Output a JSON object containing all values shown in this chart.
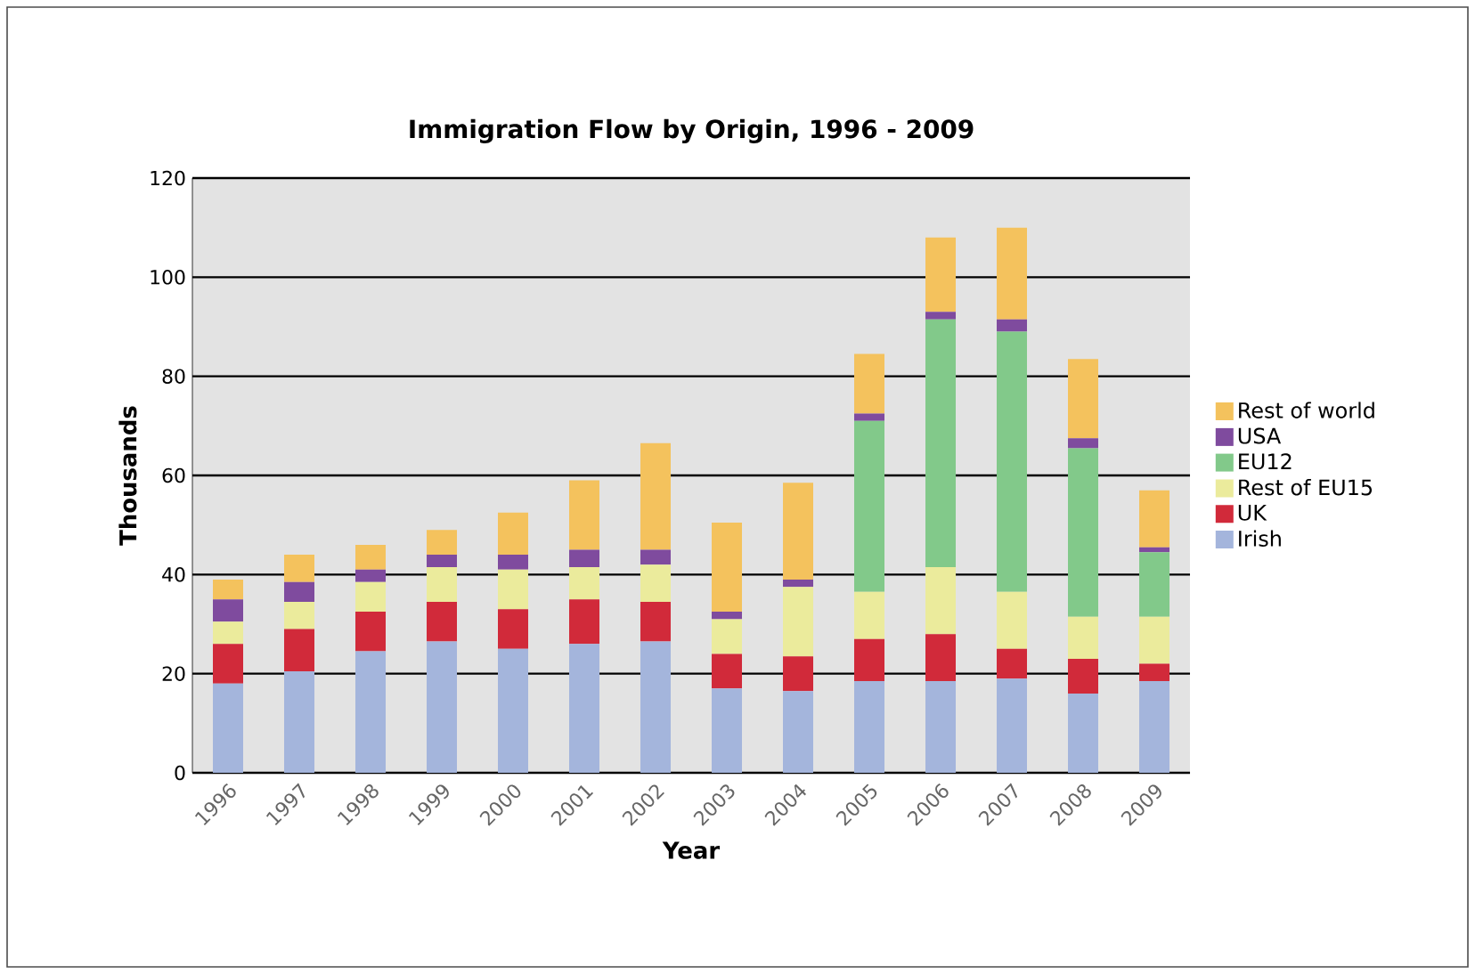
{
  "chart_data": {
    "type": "bar",
    "stacked": true,
    "title": "Immigration Flow by Origin, 1996 - 2009",
    "xlabel": "Year",
    "ylabel": "Thousands",
    "categories": [
      "1996",
      "1997",
      "1998",
      "1999",
      "2000",
      "2001",
      "2002",
      "2003",
      "2004",
      "2005",
      "2006",
      "2007",
      "2008",
      "2009"
    ],
    "series": [
      {
        "name": "Irish",
        "color": "#a4b5dc",
        "values": [
          18,
          20.5,
          24.5,
          26.5,
          25,
          26,
          26.5,
          17,
          16.5,
          18.5,
          18.5,
          19,
          16,
          18.5
        ]
      },
      {
        "name": "UK",
        "color": "#d12a3a",
        "values": [
          8,
          8.5,
          8,
          8,
          8,
          9,
          8,
          7,
          7,
          8.5,
          9.5,
          6,
          7,
          3.5
        ]
      },
      {
        "name": "Rest of EU15",
        "color": "#ebeb9c",
        "values": [
          4.5,
          5.5,
          6,
          7,
          8,
          6.5,
          7.5,
          7,
          14,
          9.5,
          13.5,
          11.5,
          8.5,
          9.5
        ]
      },
      {
        "name": "EU12",
        "color": "#82c98a",
        "values": [
          0,
          0,
          0,
          0,
          0,
          0,
          0,
          0,
          0,
          34.5,
          50,
          52.5,
          34,
          13
        ]
      },
      {
        "name": "USA",
        "color": "#7f4b9e",
        "values": [
          4.5,
          4,
          2.5,
          2.5,
          3,
          3.5,
          3,
          1.5,
          1.5,
          1.5,
          1.5,
          2.5,
          2,
          1
        ]
      },
      {
        "name": "Rest of world",
        "color": "#f4c25d",
        "values": [
          4,
          5.5,
          5,
          5,
          8.5,
          14,
          21.5,
          18,
          19.5,
          12,
          15,
          18.5,
          16,
          11.5
        ]
      }
    ],
    "ylim": [
      0,
      120
    ],
    "yticks": [
      0,
      20,
      40,
      60,
      80,
      100,
      120
    ],
    "grid": "y",
    "legend": "right"
  }
}
